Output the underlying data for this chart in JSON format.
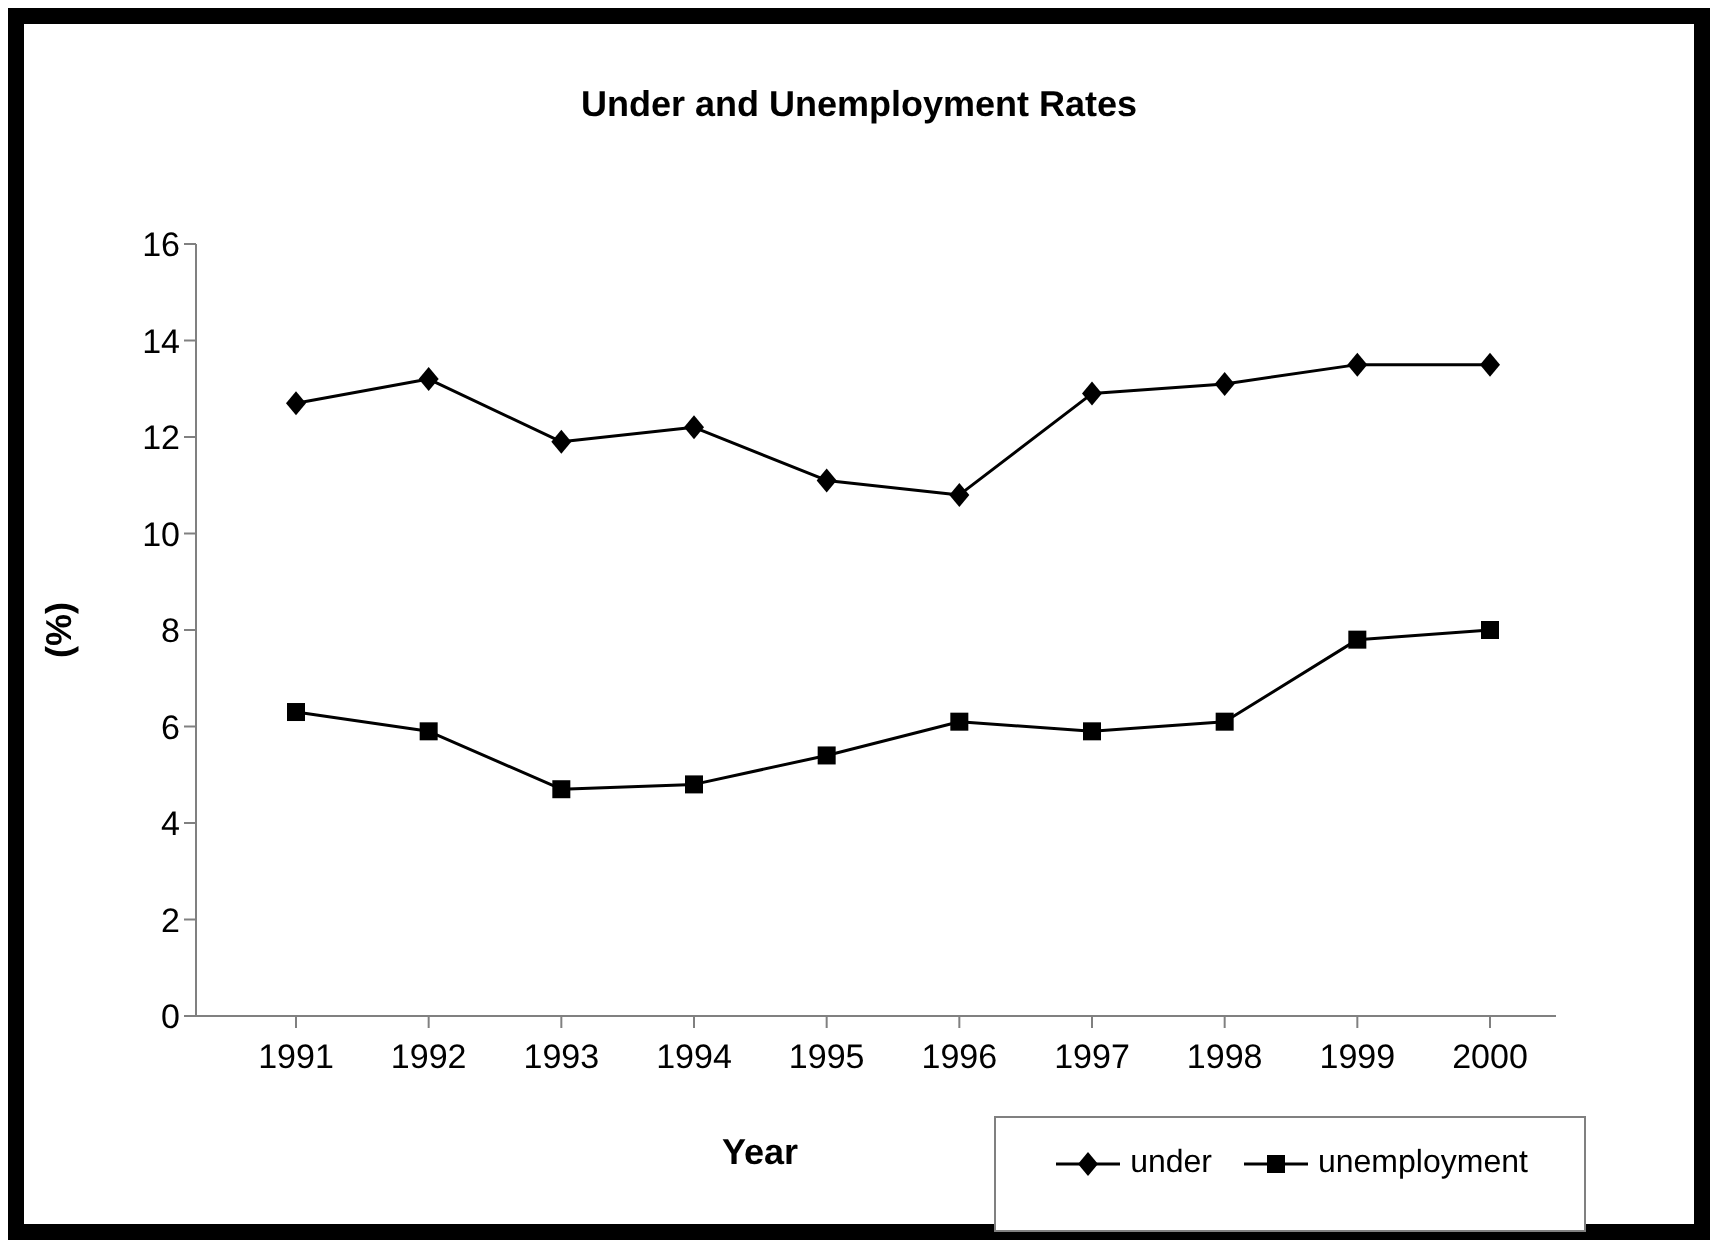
{
  "chart_data": {
    "type": "line",
    "title": "Under and Unemployment Rates",
    "xlabel": "Year",
    "ylabel": "(%)",
    "categories": [
      "1991",
      "1992",
      "1993",
      "1994",
      "1995",
      "1996",
      "1997",
      "1998",
      "1999",
      "2000"
    ],
    "series": [
      {
        "name": "under",
        "color": "#000000",
        "marker": "diamond",
        "values": [
          12.7,
          13.2,
          11.9,
          12.2,
          11.1,
          10.8,
          12.9,
          13.1,
          13.5,
          13.5
        ]
      },
      {
        "name": "unemployment",
        "color": "#000000",
        "marker": "square",
        "values": [
          6.3,
          5.9,
          4.7,
          4.8,
          5.4,
          6.1,
          5.9,
          6.1,
          7.8,
          8.0
        ]
      }
    ],
    "ylim": [
      0,
      16
    ],
    "yticks": [
      0,
      2,
      4,
      6,
      8,
      10,
      12,
      14,
      16
    ],
    "grid": false,
    "legend": "bottom right"
  }
}
